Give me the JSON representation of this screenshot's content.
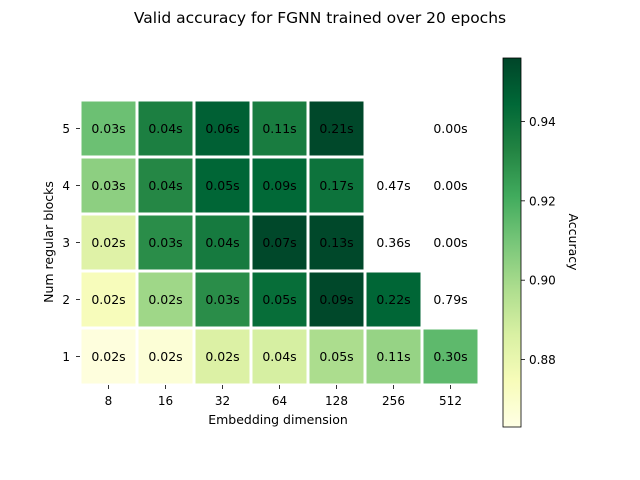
{
  "chart_data": {
    "type": "heatmap",
    "title": "Valid accuracy for FGNN trained over 20 epochs",
    "xlabel": "Embedding dimension",
    "ylabel": "Num regular blocks",
    "x_categories": [
      "8",
      "16",
      "32",
      "64",
      "128",
      "256",
      "512"
    ],
    "y_categories": [
      "1",
      "2",
      "3",
      "4",
      "5"
    ],
    "colorbar": {
      "label": "Accuracy",
      "range": [
        0.863,
        0.956
      ],
      "ticks": [
        0.88,
        0.9,
        0.92,
        0.94
      ],
      "tick_labels": [
        "0.88",
        "0.90",
        "0.92",
        "0.94"
      ],
      "colormap": "YlGn"
    },
    "rows": [
      {
        "blocks": "1",
        "accuracy": [
          0.865,
          0.867,
          0.885,
          0.887,
          0.898,
          0.903,
          0.915
        ],
        "labels": [
          "0.02s",
          "0.02s",
          "0.02s",
          "0.04s",
          "0.05s",
          "0.11s",
          "0.30s"
        ]
      },
      {
        "blocks": "2",
        "accuracy": [
          0.874,
          0.901,
          0.93,
          0.942,
          0.955,
          0.945,
          null
        ],
        "labels": [
          "0.02s",
          "0.02s",
          "0.03s",
          "0.05s",
          "0.09s",
          "0.22s",
          "0.79s"
        ]
      },
      {
        "blocks": "3",
        "accuracy": [
          0.884,
          0.93,
          0.937,
          0.955,
          0.955,
          null,
          null
        ],
        "labels": [
          "0.02s",
          "0.03s",
          "0.04s",
          "0.07s",
          "0.13s",
          "0.36s",
          "0.00s"
        ]
      },
      {
        "blocks": "4",
        "accuracy": [
          0.905,
          0.932,
          0.945,
          0.944,
          0.94,
          null,
          null
        ],
        "labels": [
          "0.03s",
          "0.04s",
          "0.05s",
          "0.09s",
          "0.17s",
          "0.47s",
          "0.00s"
        ]
      },
      {
        "blocks": "5",
        "accuracy": [
          0.912,
          0.935,
          0.947,
          0.936,
          0.955,
          null,
          null
        ],
        "labels": [
          "0.03s",
          "0.04s",
          "0.06s",
          "0.11s",
          "0.21s",
          "",
          "0.00s"
        ]
      }
    ]
  }
}
